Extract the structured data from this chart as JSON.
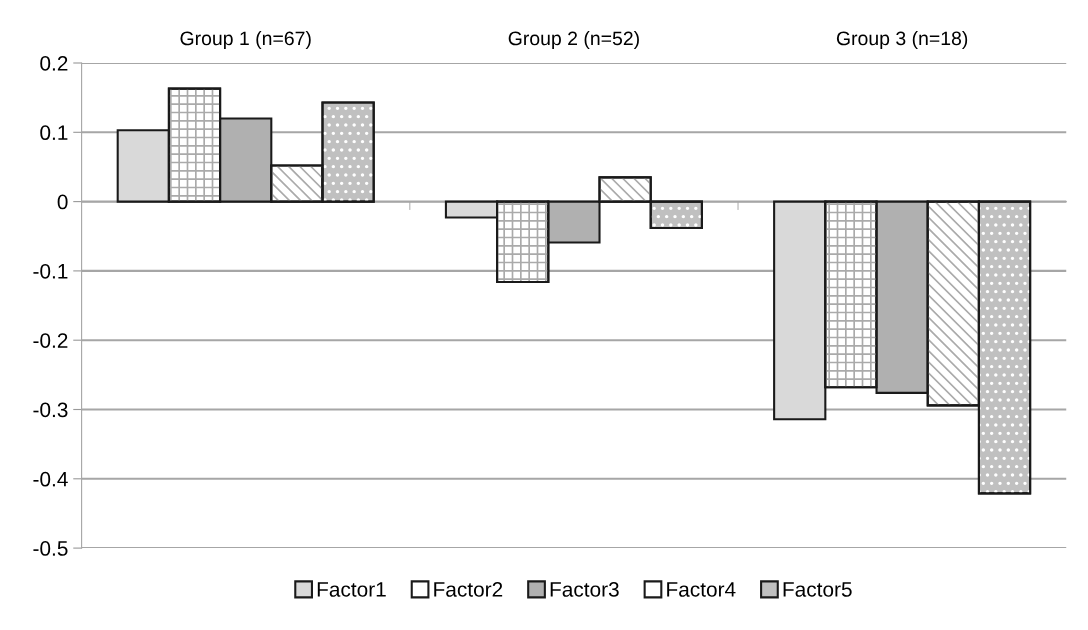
{
  "chart_data": {
    "type": "bar",
    "categories": [
      "Group 1 (n=67)",
      "Group 2 (n=52)",
      "Group 3 (n=18)"
    ],
    "series": [
      {
        "name": "Factor1",
        "color": "#d9d9d9",
        "values": [
          0.103,
          -0.023,
          -0.314
        ]
      },
      {
        "name": "Factor2",
        "color": "#ffffff",
        "values": [
          0.163,
          -0.116,
          -0.268
        ]
      },
      {
        "name": "Factor3",
        "color": "#b0b0b0",
        "values": [
          0.12,
          -0.059,
          -0.276
        ]
      },
      {
        "name": "Factor4",
        "color": "#ffffff",
        "values": [
          0.052,
          0.035,
          -0.294
        ]
      },
      {
        "name": "Factor5",
        "color": "#c0c0c0",
        "values": [
          0.143,
          -0.038,
          -0.421
        ]
      }
    ],
    "ylim": [
      -0.5,
      0.2
    ],
    "yticks": [
      {
        "value": -0.5,
        "label": "-0.5"
      },
      {
        "value": -0.4,
        "label": "-0.4"
      },
      {
        "value": -0.3,
        "label": "-0.3"
      },
      {
        "value": -0.2,
        "label": "-0.2"
      },
      {
        "value": -0.1,
        "label": "-0.1"
      },
      0,
      0.1,
      0.2
    ],
    "grid": "y",
    "legend": "bottom"
  }
}
